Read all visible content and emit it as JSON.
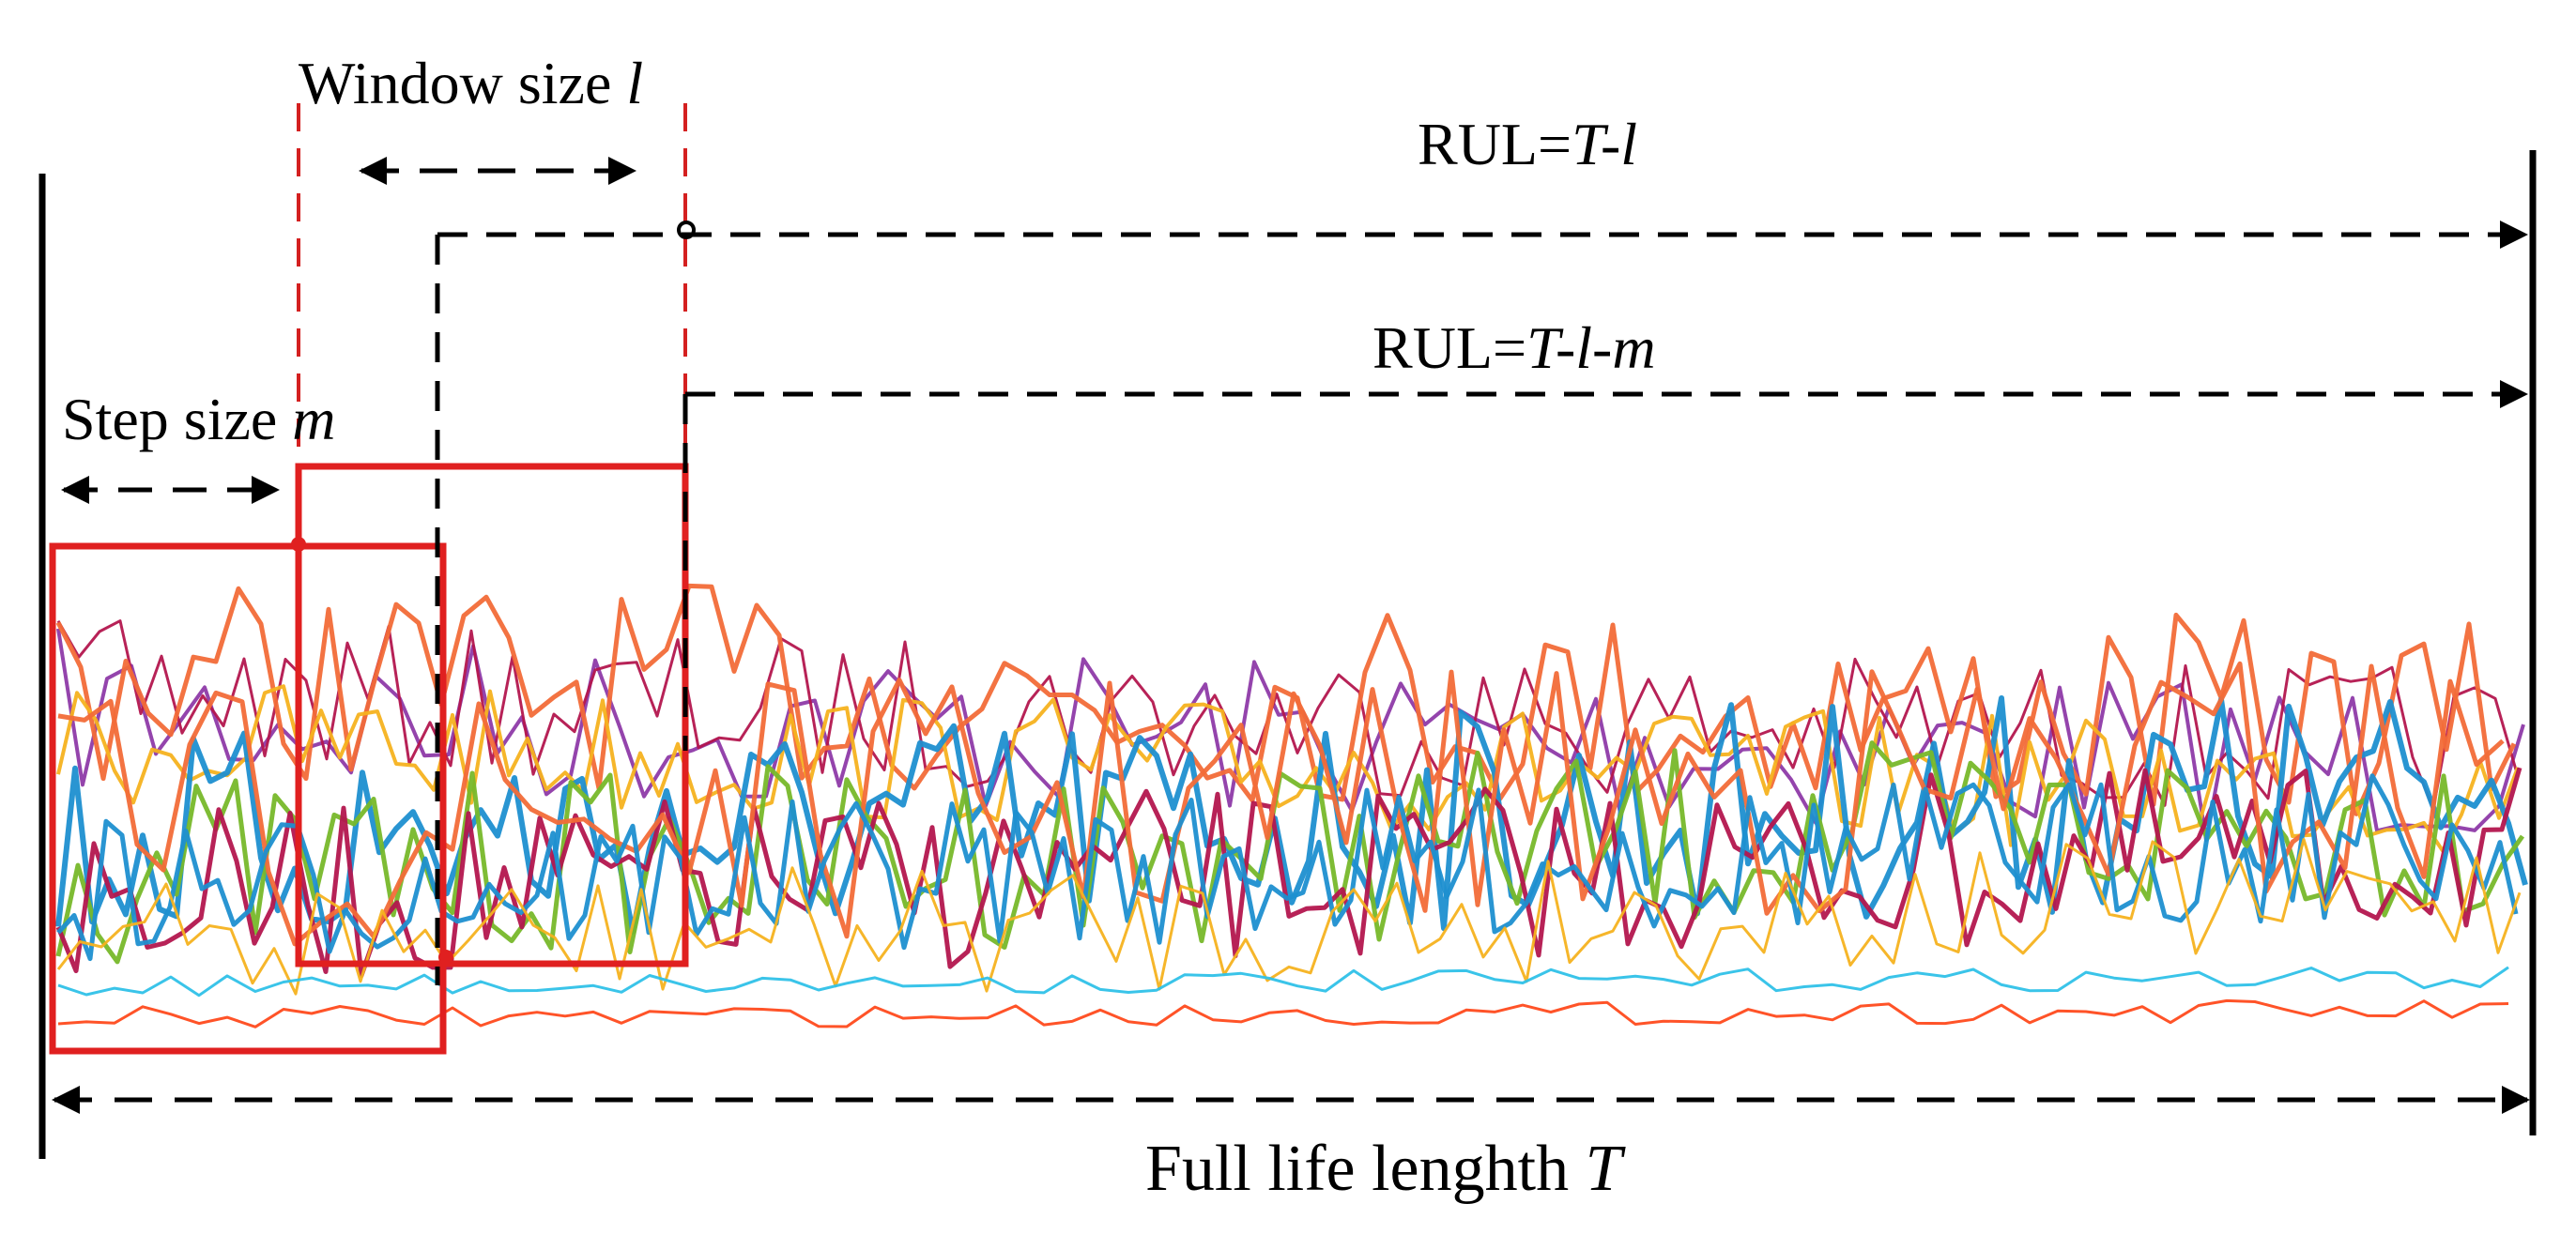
{
  "labels": {
    "window_pre": "Window size ",
    "window_var": "l",
    "rul1_pre": "RUL=",
    "rul1_var": "T-l",
    "rul2_pre": "RUL=",
    "rul2_var": "T-l-m",
    "step_pre": "Step size ",
    "step_var": "m",
    "full_pre": "Full life lenghth ",
    "full_var": "T"
  },
  "colors": {
    "axis": "#000000",
    "window": "#e02020",
    "window_guides": "#d42020",
    "signals": [
      "#f26b38",
      "#8e3aa8",
      "#1d8fd0",
      "#77b82a",
      "#f5b21f",
      "#b3164e",
      "#2fc1e8",
      "#ff4a1c"
    ]
  },
  "signal_traces": {
    "count": 12,
    "note_visible": "multiple noisy degradation signals drawn as colored polylines"
  }
}
